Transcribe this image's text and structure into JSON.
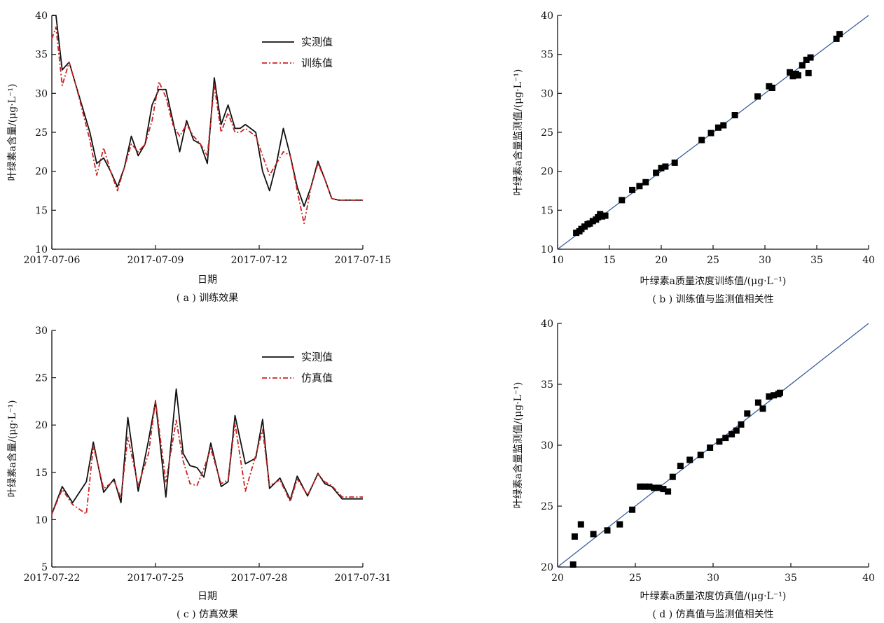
{
  "chart_data": [
    {
      "id": "a",
      "type": "line",
      "caption": "( a ) 训练效果",
      "xlabel": "日期",
      "ylabel": "叶绿素a含量/(μg·L⁻¹)",
      "xlim": [
        0,
        9
      ],
      "ylim": [
        10,
        40
      ],
      "xticks": [
        0,
        3,
        6,
        9
      ],
      "xtick_labels": [
        "2017-07-06",
        "2017-07-09",
        "2017-07-12",
        "2017-07-15"
      ],
      "yticks": [
        10,
        15,
        20,
        25,
        30,
        35,
        40
      ],
      "legend_position": "top-right",
      "series": [
        {
          "name": "实测值",
          "color": "#111111",
          "dash": "solid",
          "x": [
            0,
            0.12,
            0.3,
            0.5,
            0.7,
            0.9,
            1.1,
            1.3,
            1.5,
            1.7,
            1.9,
            2.1,
            2.3,
            2.5,
            2.7,
            2.9,
            3.1,
            3.3,
            3.5,
            3.7,
            3.9,
            4.1,
            4.3,
            4.5,
            4.7,
            4.9,
            5.1,
            5.3,
            5.45,
            5.6,
            5.75,
            5.9,
            6.1,
            6.3,
            6.5,
            6.7,
            6.9,
            7.1,
            7.3,
            7.5,
            7.7,
            7.9,
            8.1,
            8.3,
            8.5,
            8.7,
            8.9,
            9.0
          ],
          "y": [
            40,
            40,
            33,
            34,
            31,
            28,
            25,
            21,
            21.7,
            20,
            18,
            20.5,
            24.5,
            22,
            23.5,
            28.5,
            30.5,
            30.5,
            26.5,
            22.5,
            26.5,
            24,
            23.5,
            21,
            32,
            26,
            28.5,
            25.5,
            25.5,
            26,
            25.5,
            25,
            20,
            17.5,
            21,
            25.5,
            22,
            18,
            15.5,
            18,
            21.3,
            19,
            16.5,
            16.3,
            16.3,
            16.3,
            16.3,
            16.3
          ]
        },
        {
          "name": "训练值",
          "color": "#cc2222",
          "dash": "dashdot",
          "x": [
            0,
            0.12,
            0.3,
            0.5,
            0.7,
            0.9,
            1.1,
            1.3,
            1.5,
            1.7,
            1.9,
            2.1,
            2.3,
            2.5,
            2.7,
            2.9,
            3.1,
            3.3,
            3.5,
            3.7,
            3.9,
            4.1,
            4.3,
            4.5,
            4.7,
            4.9,
            5.1,
            5.3,
            5.45,
            5.6,
            5.75,
            5.9,
            6.1,
            6.3,
            6.5,
            6.7,
            6.9,
            7.1,
            7.3,
            7.5,
            7.7,
            7.9,
            8.1,
            8.3,
            8.5,
            8.7,
            8.9,
            9.0
          ],
          "y": [
            37,
            38.5,
            31,
            34,
            31,
            27.5,
            24,
            19.5,
            23,
            20,
            17.5,
            20.5,
            23.5,
            22.5,
            23.5,
            26.5,
            31.5,
            29.5,
            26,
            24.5,
            26,
            24.5,
            23.5,
            22,
            31,
            25,
            27.5,
            25,
            25,
            25.5,
            25,
            24.5,
            22,
            19.5,
            21,
            22.5,
            22,
            17.5,
            13.3,
            18,
            21,
            19,
            16.5,
            16.3,
            16.3,
            16.3,
            16.3,
            16.3
          ]
        }
      ]
    },
    {
      "id": "b",
      "type": "scatter",
      "caption": "( b ) 训练值与监测值相关性",
      "xlabel": "叶绿素a质量浓度训练值/(μg·L⁻¹)",
      "ylabel": "叶绿素a含量监测值/(μg·L⁻¹)",
      "xlim": [
        10,
        40
      ],
      "ylim": [
        10,
        40
      ],
      "xticks": [
        10,
        15,
        20,
        25,
        30,
        35,
        40
      ],
      "yticks": [
        10,
        15,
        20,
        25,
        30,
        35,
        40
      ],
      "fit_line": [
        [
          10,
          10
        ],
        [
          40,
          40
        ]
      ],
      "points_x": [
        11.8,
        12.1,
        12.3,
        12.6,
        12.9,
        13.1,
        13.4,
        13.7,
        13.9,
        14.1,
        14.3,
        14.6,
        16.2,
        17.2,
        17.9,
        18.5,
        19.5,
        20.0,
        20.4,
        21.3,
        23.9,
        24.8,
        25.5,
        26.0,
        27.1,
        29.3,
        30.4,
        30.7,
        32.4,
        32.7,
        33.0,
        33.2,
        33.6,
        34.0,
        34.2,
        34.4,
        36.9,
        37.2
      ],
      "points_y": [
        12.1,
        12.3,
        12.6,
        12.9,
        13.2,
        13.3,
        13.6,
        13.8,
        14.1,
        14.5,
        14.2,
        14.3,
        16.3,
        17.6,
        18.1,
        18.6,
        19.8,
        20.4,
        20.6,
        21.1,
        24.0,
        24.9,
        25.6,
        25.9,
        27.2,
        29.6,
        30.9,
        30.7,
        32.7,
        32.2,
        32.5,
        32.3,
        33.6,
        34.3,
        32.6,
        34.6,
        37.0,
        37.6
      ]
    },
    {
      "id": "c",
      "type": "line",
      "caption": "( c ) 仿真效果",
      "xlabel": "日期",
      "ylabel": "叶绿素a含量/(μg·L⁻¹)",
      "xlim": [
        0,
        9
      ],
      "ylim": [
        5,
        30
      ],
      "xticks": [
        0,
        3,
        6,
        9
      ],
      "xtick_labels": [
        "2017-07-22",
        "2017-07-25",
        "2017-07-28",
        "2017-07-31"
      ],
      "yticks": [
        5,
        10,
        15,
        20,
        25,
        30
      ],
      "legend_position": "top-right",
      "series": [
        {
          "name": "实测值",
          "color": "#111111",
          "dash": "solid",
          "x": [
            0,
            0.3,
            0.6,
            1.0,
            1.2,
            1.5,
            1.8,
            2.0,
            2.2,
            2.5,
            2.8,
            3.0,
            3.3,
            3.6,
            3.8,
            4.0,
            4.2,
            4.4,
            4.6,
            4.9,
            5.1,
            5.3,
            5.6,
            5.9,
            6.1,
            6.3,
            6.6,
            6.9,
            7.1,
            7.4,
            7.7,
            7.9,
            8.1,
            8.4,
            8.7,
            9.0
          ],
          "y": [
            10.6,
            13.5,
            11.8,
            14,
            18.2,
            12.9,
            14.3,
            11.8,
            20.8,
            13,
            18.4,
            22.5,
            12.4,
            23.8,
            17,
            15.7,
            15.5,
            14.5,
            18.1,
            13.5,
            14.0,
            21.0,
            15.9,
            16.5,
            20.6,
            13.3,
            14.4,
            12.1,
            14.6,
            12.5,
            14.9,
            13.8,
            13.5,
            12.2,
            12.2,
            12.2
          ]
        },
        {
          "name": "仿真值",
          "color": "#cc2222",
          "dash": "dashdot",
          "x": [
            0,
            0.3,
            0.6,
            1.0,
            1.2,
            1.5,
            1.8,
            2.0,
            2.2,
            2.5,
            2.8,
            3.0,
            3.3,
            3.6,
            3.8,
            4.0,
            4.2,
            4.4,
            4.6,
            4.9,
            5.1,
            5.3,
            5.6,
            5.9,
            6.1,
            6.3,
            6.6,
            6.9,
            7.1,
            7.4,
            7.7,
            7.9,
            8.1,
            8.4,
            8.7,
            9.0
          ],
          "y": [
            10.6,
            13.2,
            11.6,
            10.6,
            17.8,
            13.3,
            14.1,
            12.3,
            18.7,
            13.6,
            17.0,
            22.6,
            14.0,
            20.5,
            16.2,
            13.8,
            13.6,
            15.4,
            17.5,
            13.8,
            14.2,
            20.2,
            13.0,
            16.8,
            19.5,
            13.6,
            14.2,
            11.9,
            14.3,
            12.6,
            14.8,
            14.0,
            13.6,
            12.4,
            12.4,
            12.4
          ]
        }
      ]
    },
    {
      "id": "d",
      "type": "scatter",
      "caption": "( d ) 仿真值与监测值相关性",
      "xlabel": "叶绿素a质量浓度仿真值/(μg·L⁻¹)",
      "ylabel": "叶绿素a含量监测值/(μg·L⁻¹)",
      "xlim": [
        20,
        40
      ],
      "ylim": [
        20,
        40
      ],
      "xticks": [
        20,
        25,
        30,
        35,
        40
      ],
      "yticks": [
        20,
        25,
        30,
        35,
        40
      ],
      "fit_line": [
        [
          20,
          20
        ],
        [
          40,
          40
        ]
      ],
      "points_x": [
        21.0,
        21.1,
        21.5,
        22.3,
        23.2,
        24.0,
        24.8,
        25.3,
        25.6,
        25.9,
        26.2,
        26.5,
        26.8,
        27.1,
        27.4,
        27.9,
        28.5,
        29.2,
        29.8,
        30.4,
        30.8,
        31.2,
        31.5,
        31.8,
        32.2,
        32.9,
        33.2,
        33.6,
        33.9,
        34.2,
        34.3
      ],
      "points_y": [
        20.2,
        22.5,
        23.5,
        22.7,
        23.0,
        23.5,
        24.7,
        26.6,
        26.6,
        26.6,
        26.5,
        26.5,
        26.4,
        26.2,
        27.4,
        28.3,
        28.8,
        29.2,
        29.8,
        30.3,
        30.6,
        30.9,
        31.2,
        31.7,
        32.6,
        33.5,
        33.0,
        34.0,
        34.1,
        34.2,
        34.3
      ]
    }
  ]
}
